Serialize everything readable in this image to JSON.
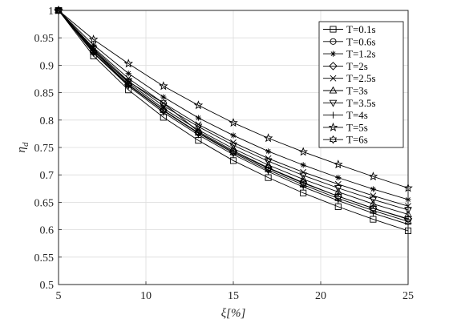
{
  "chart_data": {
    "type": "line",
    "xlabel": "ξ[%]",
    "ylabel": "η_d",
    "xlim": [
      5,
      25
    ],
    "ylim": [
      0.5,
      1.0
    ],
    "xticks": [
      "5",
      "10",
      "15",
      "20",
      "25"
    ],
    "yticks": [
      "0.5",
      "0.55",
      "0.6",
      "0.65",
      "0.7",
      "0.75",
      "0.8",
      "0.85",
      "0.9",
      "0.95",
      "1"
    ],
    "grid": true,
    "legend_position": "top-right",
    "x": [
      5,
      7,
      9,
      11,
      13,
      15,
      17,
      19,
      21,
      23,
      25
    ],
    "series": [
      {
        "name": "T=0.1s",
        "marker": "square",
        "values": [
          1,
          0.917,
          0.855,
          0.805,
          0.763,
          0.726,
          0.695,
          0.667,
          0.642,
          0.619,
          0.598
        ]
      },
      {
        "name": "T=0.6s",
        "marker": "circle",
        "values": [
          1,
          0.925,
          0.87,
          0.831,
          0.779,
          0.744,
          0.713,
          0.686,
          0.661,
          0.639,
          0.619
        ]
      },
      {
        "name": "T=1.2s",
        "marker": "star",
        "values": [
          1,
          0.937,
          0.885,
          0.842,
          0.804,
          0.772,
          0.743,
          0.718,
          0.695,
          0.674,
          0.655
        ]
      },
      {
        "name": "T=2s",
        "marker": "diamond",
        "values": [
          1,
          0.926,
          0.865,
          0.818,
          0.777,
          0.742,
          0.712,
          0.685,
          0.661,
          0.639,
          0.62
        ]
      },
      {
        "name": "T=2.5s",
        "marker": "x",
        "values": [
          1,
          0.932,
          0.876,
          0.831,
          0.792,
          0.759,
          0.73,
          0.705,
          0.683,
          0.662,
          0.643
        ]
      },
      {
        "name": "T=3s",
        "marker": "triangle-up",
        "values": [
          1,
          0.928,
          0.868,
          0.821,
          0.782,
          0.748,
          0.718,
          0.692,
          0.669,
          0.647,
          0.628
        ]
      },
      {
        "name": "T=3.5s",
        "marker": "triangle-down",
        "values": [
          1,
          0.93,
          0.871,
          0.826,
          0.788,
          0.754,
          0.725,
          0.699,
          0.676,
          0.655,
          0.636
        ]
      },
      {
        "name": "T=4s",
        "marker": "plus",
        "values": [
          1,
          0.922,
          0.862,
          0.814,
          0.773,
          0.737,
          0.706,
          0.678,
          0.653,
          0.63,
          0.61
        ]
      },
      {
        "name": "T=5s",
        "marker": "pentagram",
        "values": [
          1,
          0.947,
          0.903,
          0.862,
          0.827,
          0.795,
          0.767,
          0.742,
          0.719,
          0.697,
          0.676
        ]
      },
      {
        "name": "T=6s",
        "marker": "hexagram",
        "values": [
          1,
          0.923,
          0.864,
          0.817,
          0.776,
          0.74,
          0.709,
          0.682,
          0.657,
          0.635,
          0.615
        ]
      }
    ]
  }
}
